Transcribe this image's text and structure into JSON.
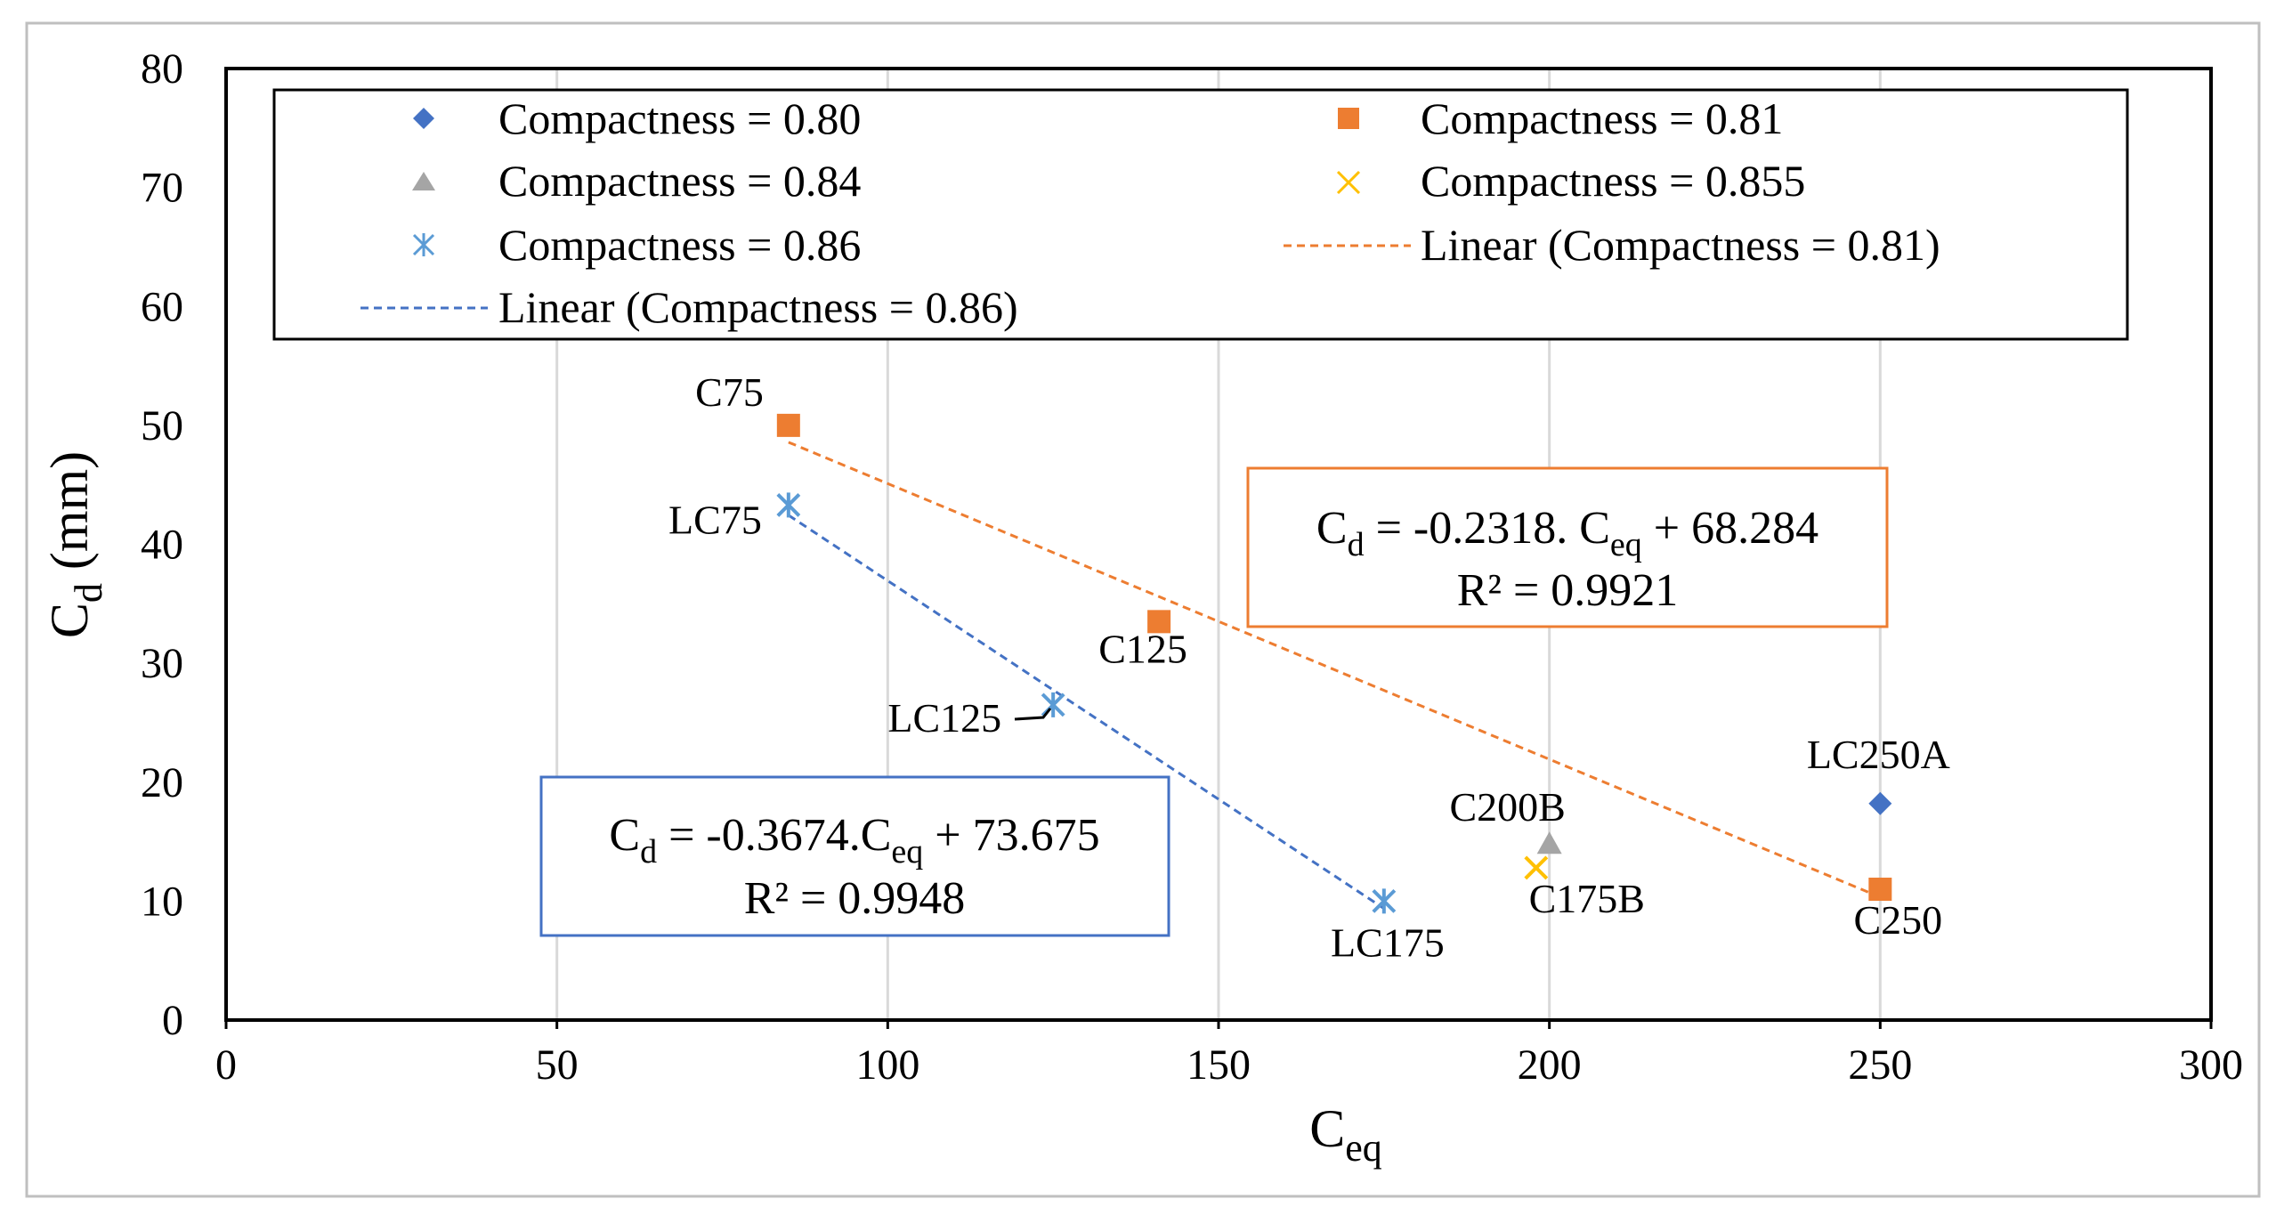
{
  "chart_data": {
    "type": "scatter",
    "title": "",
    "xlabel": {
      "main": "C",
      "sub": "eq"
    },
    "ylabel": {
      "main": "C",
      "sub": "d",
      "rest": " (mm)"
    },
    "xlim": [
      0,
      300
    ],
    "ylim": [
      0,
      80
    ],
    "x_ticks": [
      0,
      50,
      100,
      150,
      200,
      250,
      300
    ],
    "y_ticks": [
      0,
      10,
      20,
      30,
      40,
      50,
      60,
      70,
      80
    ],
    "grid": "vertical",
    "legend_position": "top",
    "series": [
      {
        "name": "Compactness = 0.80",
        "marker": "diamond",
        "color": "#4472C4",
        "points": [
          {
            "x": 250,
            "y": 18.2,
            "label": "LC250A"
          }
        ]
      },
      {
        "name": "Compactness = 0.81",
        "marker": "square",
        "color": "#ED7D31",
        "points": [
          {
            "x": 85,
            "y": 50,
            "label": "C75"
          },
          {
            "x": 141,
            "y": 33.5,
            "label": "C125"
          },
          {
            "x": 250,
            "y": 11,
            "label": "C250"
          }
        ]
      },
      {
        "name": "Compactness = 0.84",
        "marker": "triangle",
        "color": "#A5A5A5",
        "points": [
          {
            "x": 200,
            "y": 14.8,
            "label": "C200B"
          }
        ]
      },
      {
        "name": "Compactness = 0.855",
        "marker": "x",
        "color": "#FFC000",
        "points": [
          {
            "x": 198,
            "y": 12.8,
            "label": "C175B"
          }
        ]
      },
      {
        "name": "Compactness = 0.86",
        "marker": "asterisk",
        "color": "#5B9BD5",
        "points": [
          {
            "x": 85,
            "y": 43.3,
            "label": "LC75"
          },
          {
            "x": 125,
            "y": 26.5,
            "label": "LC125"
          },
          {
            "x": 175,
            "y": 10,
            "label": "LC175"
          }
        ]
      }
    ],
    "trendlines": [
      {
        "name": "Linear (Compactness = 0.81)",
        "color": "#ED7D31",
        "slope": -0.2318,
        "intercept": 68.284,
        "x_range": [
          85,
          250
        ]
      },
      {
        "name": "Linear (Compactness = 0.86)",
        "color": "#4472C4",
        "slope": -0.3674,
        "intercept": 73.675,
        "x_range": [
          85,
          175
        ]
      }
    ],
    "annotations": [
      {
        "color": "#ED7D31",
        "line1": {
          "a": "C",
          "a_sub": "d",
          "b": "  = -0.2318. C",
          "b_sub": "eq",
          "c": " + 68.284"
        },
        "line2": "R² = 0.9921"
      },
      {
        "color": "#4472C4",
        "line1": {
          "a": "C",
          "a_sub": "d",
          "b": "  = -0.3674.C",
          "b_sub": "eq",
          "c": " + 73.675"
        },
        "line2": "R² = 0.9948"
      }
    ]
  }
}
